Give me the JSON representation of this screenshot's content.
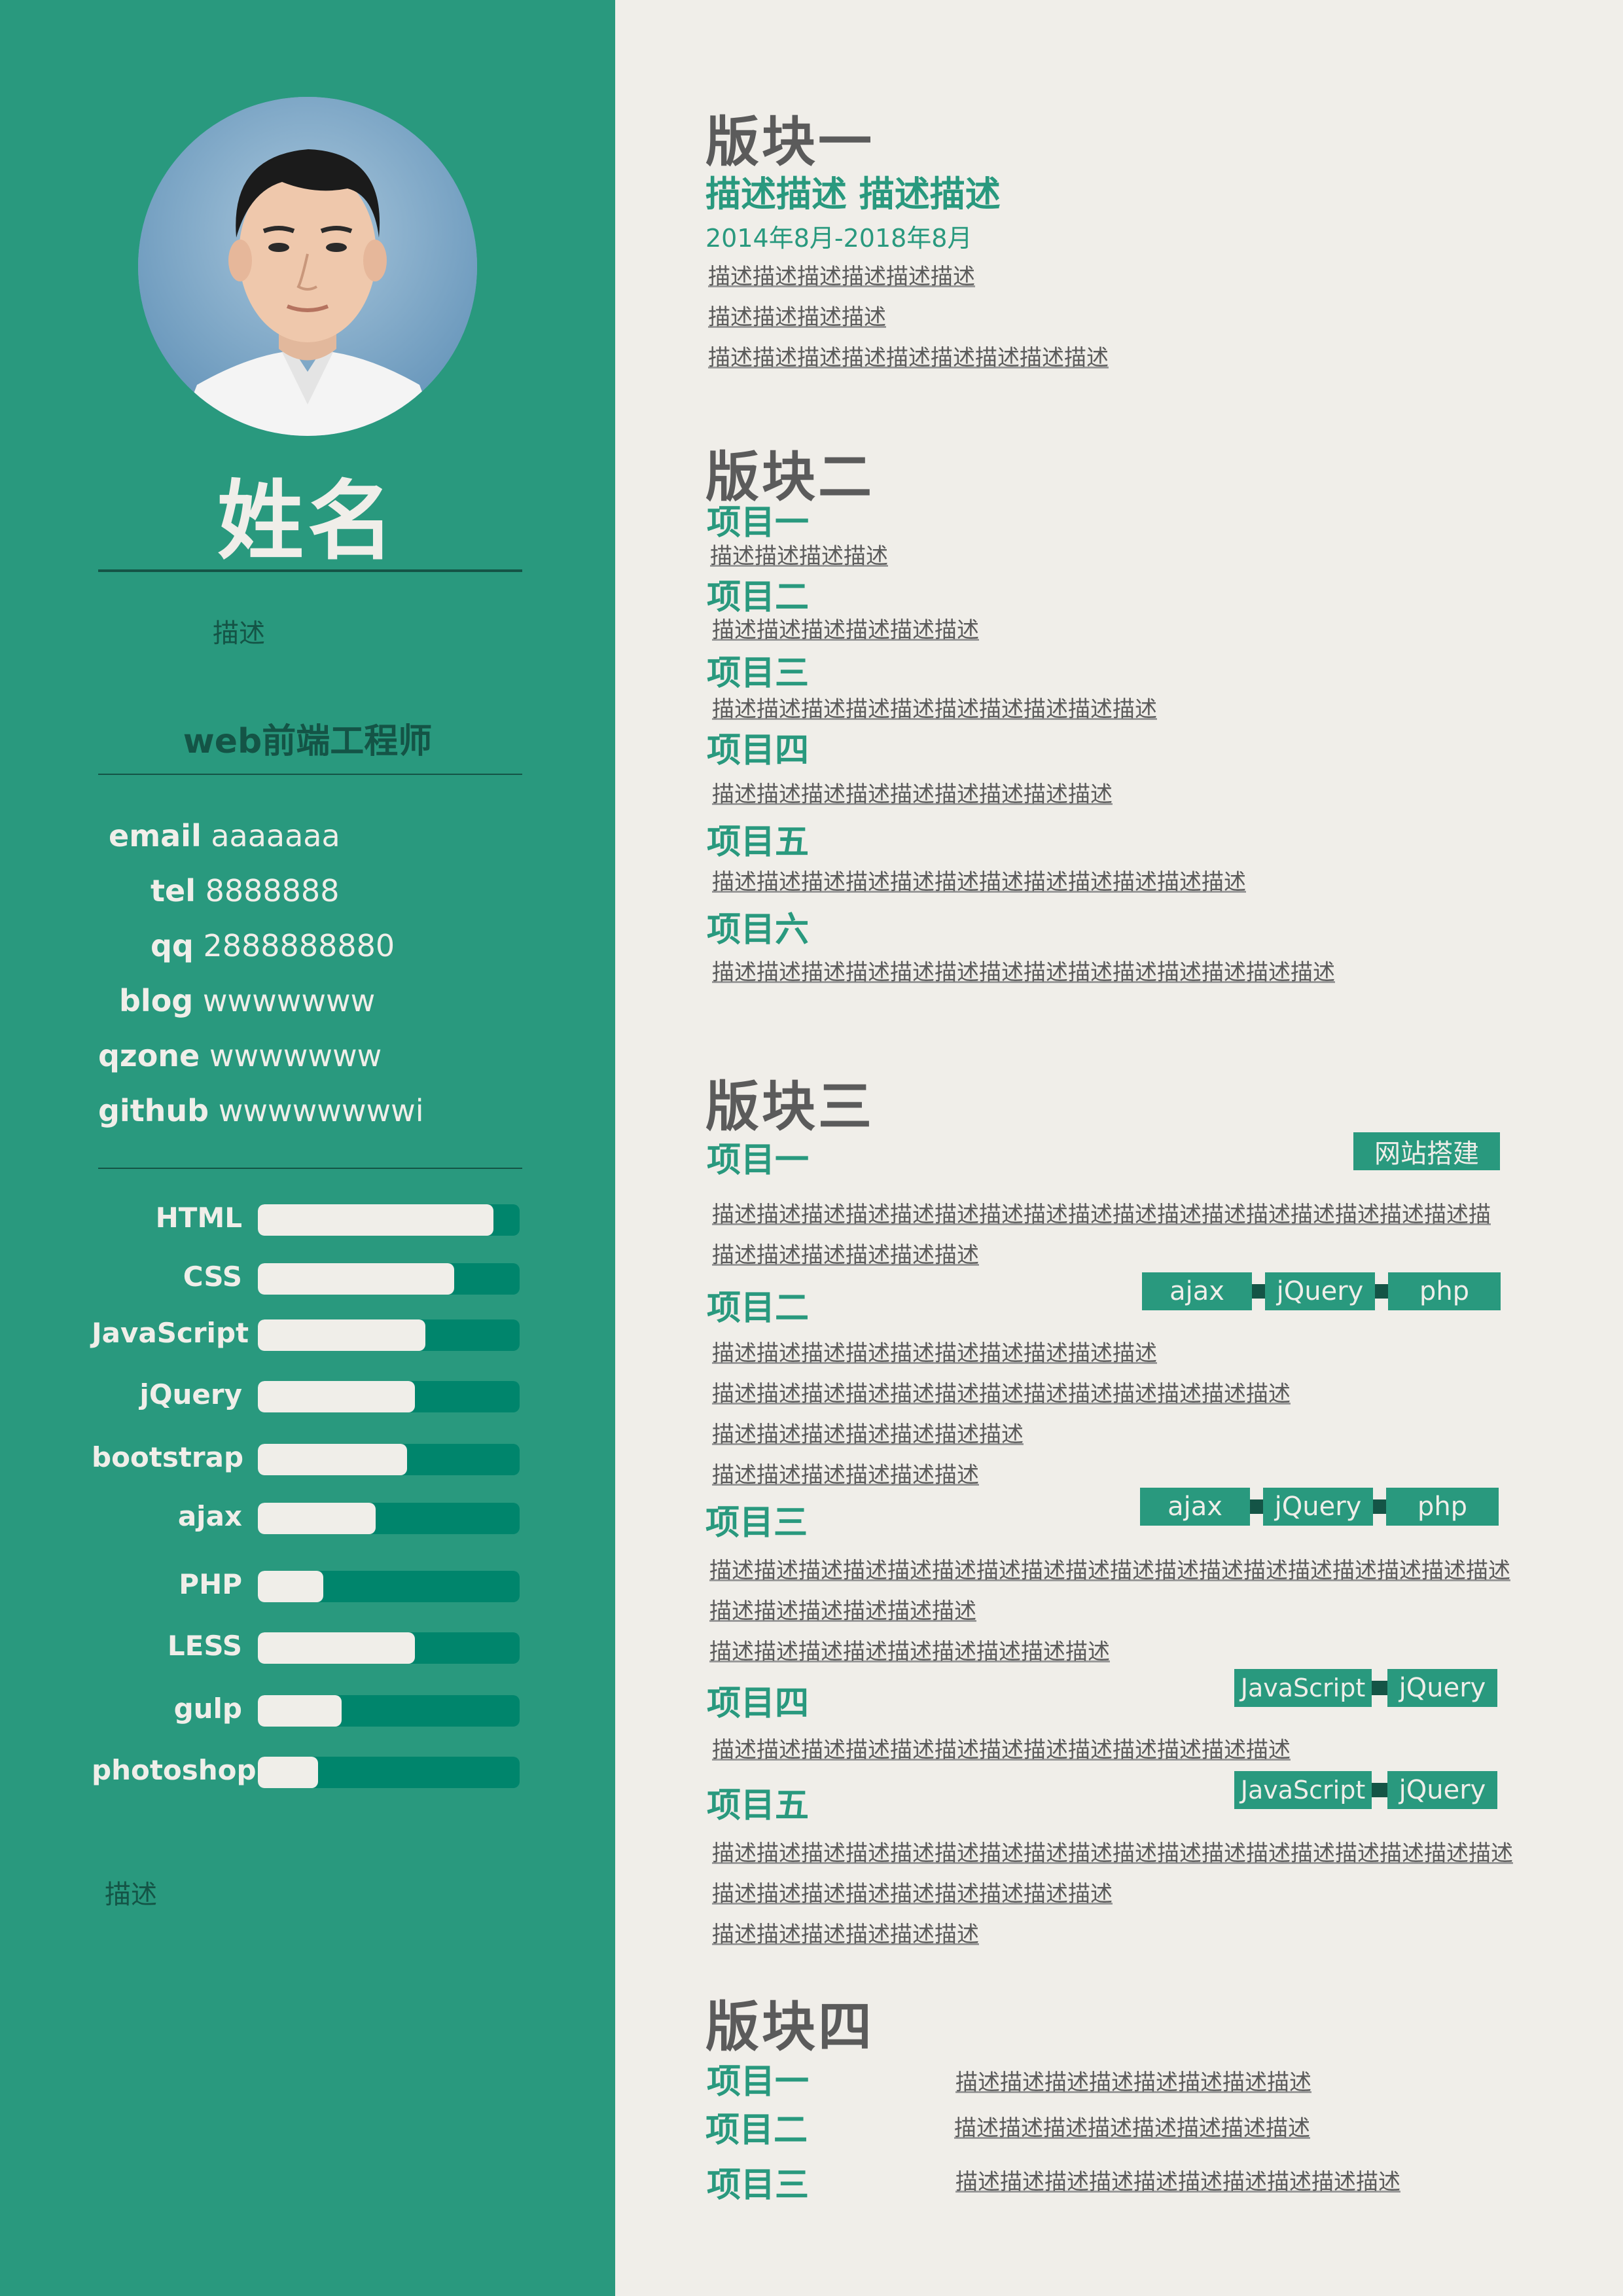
{
  "profile": {
    "name": "姓名",
    "description": "描述",
    "title": "web前端工程师",
    "footer_description": "描述"
  },
  "contacts": [
    {
      "key": "email",
      "value": "aaaaaaa"
    },
    {
      "key": "tel",
      "value": "8888888"
    },
    {
      "key": "qq",
      "value": "2888888880"
    },
    {
      "key": "blog",
      "value": "wwwwwww"
    },
    {
      "key": "qzone",
      "value": "wwwwwww"
    },
    {
      "key": "github",
      "value": "wwwwwwwwi"
    }
  ],
  "skills": [
    {
      "name": "HTML",
      "level": 0.9
    },
    {
      "name": "CSS",
      "level": 0.75
    },
    {
      "name": "JavaScript",
      "level": 0.64
    },
    {
      "name": "jQuery",
      "level": 0.6
    },
    {
      "name": "bootstrap",
      "level": 0.57
    },
    {
      "name": "ajax",
      "level": 0.45
    },
    {
      "name": "PHP",
      "level": 0.25
    },
    {
      "name": "LESS",
      "level": 0.6
    },
    {
      "name": "gulp",
      "level": 0.32
    },
    {
      "name": "photoshop",
      "level": 0.23
    }
  ],
  "block1": {
    "title": "版块一",
    "subtitle": "描述描述 描述描述",
    "date": "2014年8月-2018年8月",
    "lines": [
      "描述描述描述描述描述描述",
      "描述描述描述描述",
      "描述描述描述描述描述描述描述描述描述"
    ]
  },
  "block2": {
    "title": "版块二",
    "items": [
      {
        "title": "项目一",
        "desc": "描述描述描述描述"
      },
      {
        "title": "项目二",
        "desc": "描述描述描述描述描述描述"
      },
      {
        "title": "项目三",
        "desc": "描述描述描述描述描述描述描述描述描述描述"
      },
      {
        "title": "项目四",
        "desc": "描述描述描述描述描述描述描述描述描述"
      },
      {
        "title": "项目五",
        "desc": "描述描述描述描述描述描述描述描述描述描述描述描述"
      },
      {
        "title": "项目六",
        "desc": "描述描述描述描述描述描述描述描述描述描述描述描述描述描述"
      }
    ]
  },
  "block3": {
    "title": "版块三",
    "items": [
      {
        "title": "项目一",
        "tags": [
          "网站搭建"
        ],
        "lines": [
          "描述描述描述描述描述描述描述描述描述描述描述描述描述描述描述描述描述描",
          "描述描述描述描述描述描述"
        ]
      },
      {
        "title": "项目二",
        "tags": [
          "ajax",
          "jQuery",
          "php"
        ],
        "lines": [
          "描述描述描述描述描述描述描述描述描述描述",
          "描述描述描述描述描述描述描述描述描述描述描述描述描述",
          "描述描述描述描述描述描述描述",
          "描述描述描述描述描述描述"
        ]
      },
      {
        "title": "项目三",
        "tags": [
          "ajax",
          "jQuery",
          "php"
        ],
        "lines": [
          "描述描述描述描述描述描述描述描述描述描述描述描述描述描述描述描述描述描述",
          "描述描述描述描述描述描述",
          "描述描述描述描述描述描述描述描述描述"
        ]
      },
      {
        "title": "项目四",
        "tags": [
          "JavaScript",
          "jQuery"
        ],
        "lines": [
          "描述描述描述描述描述描述描述描述描述描述描述描述描述"
        ]
      },
      {
        "title": "项目五",
        "tags": [
          "JavaScript",
          "jQuery"
        ],
        "lines": [
          "描述描述描述描述描述描述描述描述描述描述描述描述描述描述描述描述描述描述",
          "描述描述描述描述描述描述描述描述描述",
          "描述描述描述描述描述描述"
        ]
      }
    ]
  },
  "block4": {
    "title": "版块四",
    "items": [
      {
        "title": "项目一",
        "desc": "描述描述描述描述描述描述描述描述"
      },
      {
        "title": "项目二",
        "desc": "描述描述描述描述描述描述描述描述"
      },
      {
        "title": "项目三",
        "desc": "描述描述描述描述描述描述描述描述描述描述"
      }
    ]
  },
  "colors": {
    "sidebar": "#29997e",
    "dark_green": "#145446",
    "track": "#00856c",
    "paper": "#f0eee9",
    "heading_gray": "#5b5b5b"
  }
}
